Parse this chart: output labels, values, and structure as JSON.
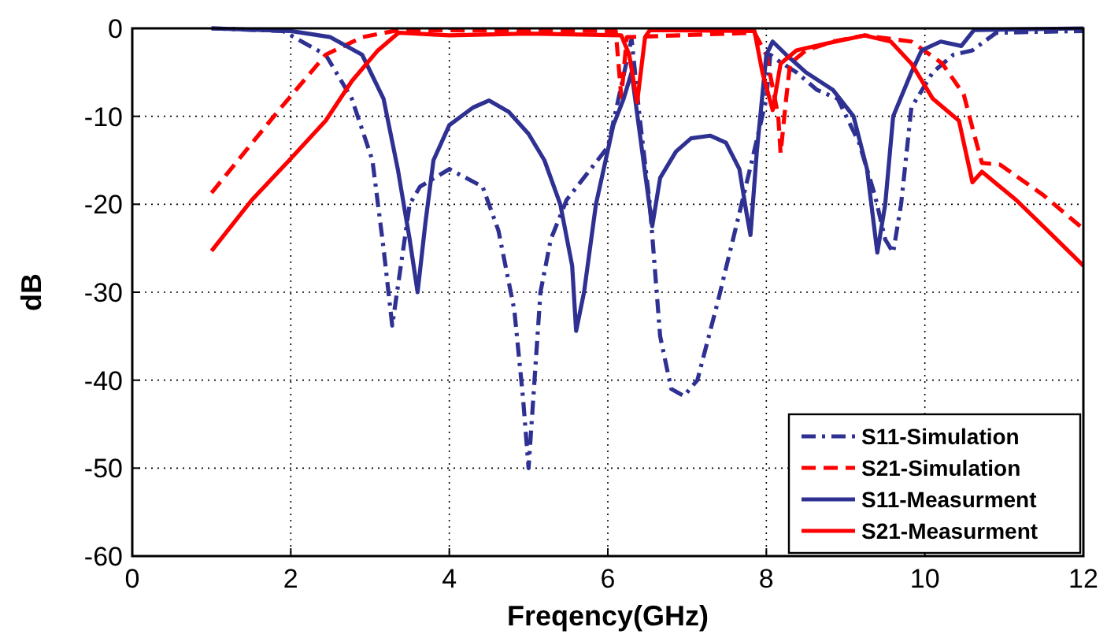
{
  "chart_data": {
    "type": "line",
    "xlabel": "Freqency(GHz)",
    "ylabel": "dB",
    "xlim": [
      0,
      12
    ],
    "ylim": [
      -60,
      0
    ],
    "xticks": [
      0,
      2,
      4,
      6,
      8,
      10,
      12
    ],
    "yticks": [
      -60,
      -50,
      -40,
      -30,
      -20,
      -10,
      0
    ],
    "grid": true,
    "legend": "bottom right",
    "series": [
      {
        "name": "S11-Simulation",
        "color": "#2e3192",
        "line_style": "dashdot",
        "x": [
          1,
          1.9,
          2.44,
          2.77,
          3.03,
          3.17,
          3.28,
          3.5,
          3.63,
          4.0,
          4.42,
          4.62,
          4.82,
          4.93,
          5.0,
          5.15,
          5.28,
          5.48,
          5.87,
          6.0,
          6.3,
          6.4,
          6.53,
          6.66,
          6.8,
          6.96,
          7.13,
          7.39,
          7.66,
          7.82,
          8.0,
          8.05,
          8.12,
          8.38,
          8.64,
          8.9,
          9.17,
          9.37,
          9.5,
          9.6,
          9.7,
          9.83,
          10.1,
          10.36,
          10.6,
          10.9,
          12
        ],
        "values": [
          0,
          -0.3,
          -3,
          -8,
          -15,
          -25,
          -33.8,
          -20,
          -18,
          -16,
          -18,
          -23,
          -32,
          -42,
          -50,
          -30,
          -24,
          -19.5,
          -15,
          -13.5,
          -1.2,
          -10,
          -20,
          -35,
          -41,
          -41.8,
          -40,
          -31,
          -21,
          -15,
          -8,
          -3,
          -3.5,
          -5,
          -7,
          -8,
          -13,
          -19,
          -24,
          -25.5,
          -20,
          -9,
          -5,
          -3,
          -2.5,
          -0.5,
          -0.3
        ]
      },
      {
        "name": "S21-Simulation",
        "color": "#ff0000",
        "line_style": "dashed",
        "x": [
          1,
          1.85,
          2.44,
          2.9,
          3.36,
          6.1,
          6.17,
          6.24,
          7.85,
          8.0,
          8.15,
          8.18,
          8.25,
          8.3,
          8.5,
          8.84,
          9.24,
          9.83,
          10.22,
          10.49,
          10.62,
          10.72,
          10.95,
          11.5,
          12
        ],
        "values": [
          -18.7,
          -9.3,
          -3,
          -1,
          -0.2,
          -0.3,
          -7.8,
          -1,
          -0.5,
          -3,
          -10,
          -14.2,
          -8,
          -4,
          -2.5,
          -1.5,
          -0.8,
          -1.5,
          -4,
          -7.5,
          -12,
          -15.3,
          -15.5,
          -19,
          -22.8
        ]
      },
      {
        "name": "S11-Measurment",
        "color": "#2e3192",
        "line_style": "solid",
        "x": [
          1,
          2,
          2.5,
          2.9,
          3.17,
          3.35,
          3.5,
          3.6,
          3.7,
          3.8,
          4.0,
          4.3,
          4.5,
          4.75,
          5.0,
          5.2,
          5.4,
          5.55,
          5.6,
          5.7,
          5.85,
          6.07,
          6.2,
          6.3,
          6.56,
          6.66,
          6.86,
          7.05,
          7.29,
          7.49,
          7.66,
          7.75,
          7.8,
          7.88,
          8.0,
          8.08,
          8.25,
          8.5,
          8.84,
          9.1,
          9.27,
          9.4,
          9.5,
          9.6,
          9.83,
          9.96,
          10.2,
          10.46,
          10.62,
          12
        ],
        "values": [
          0,
          -0.3,
          -1,
          -3,
          -8,
          -16,
          -24,
          -30,
          -22,
          -15,
          -11,
          -9,
          -8.2,
          -9.5,
          -12,
          -15,
          -20,
          -27,
          -34.4,
          -30,
          -20,
          -11,
          -8,
          -5,
          -22.5,
          -17,
          -14,
          -12.5,
          -12.2,
          -13,
          -16,
          -21,
          -23.5,
          -14,
          -3,
          -1.5,
          -3,
          -5,
          -7,
          -10,
          -16,
          -25.5,
          -20,
          -10,
          -5,
          -2.5,
          -1.5,
          -2,
          -0.2,
          0
        ]
      },
      {
        "name": "S21-Measurment",
        "color": "#ff0000",
        "line_style": "solid",
        "x": [
          1,
          1.51,
          1.98,
          2.44,
          2.77,
          3.1,
          3.36,
          4,
          5,
          6.17,
          6.27,
          6.37,
          6.47,
          6.53,
          7.85,
          7.95,
          8.08,
          8.18,
          8.38,
          8.77,
          9.24,
          9.57,
          9.83,
          10.1,
          10.43,
          10.6,
          10.72,
          11.15,
          11.55,
          12
        ],
        "values": [
          -25.3,
          -19.5,
          -15,
          -10.5,
          -6,
          -2.5,
          -0.5,
          -0.8,
          -0.6,
          -0.8,
          -3,
          -8.4,
          -1,
          -0.2,
          -0.3,
          -5,
          -9.3,
          -4,
          -2.5,
          -1.7,
          -0.8,
          -1.5,
          -4,
          -8,
          -10.5,
          -17.5,
          -16.3,
          -19.5,
          -23,
          -27
        ]
      }
    ]
  }
}
